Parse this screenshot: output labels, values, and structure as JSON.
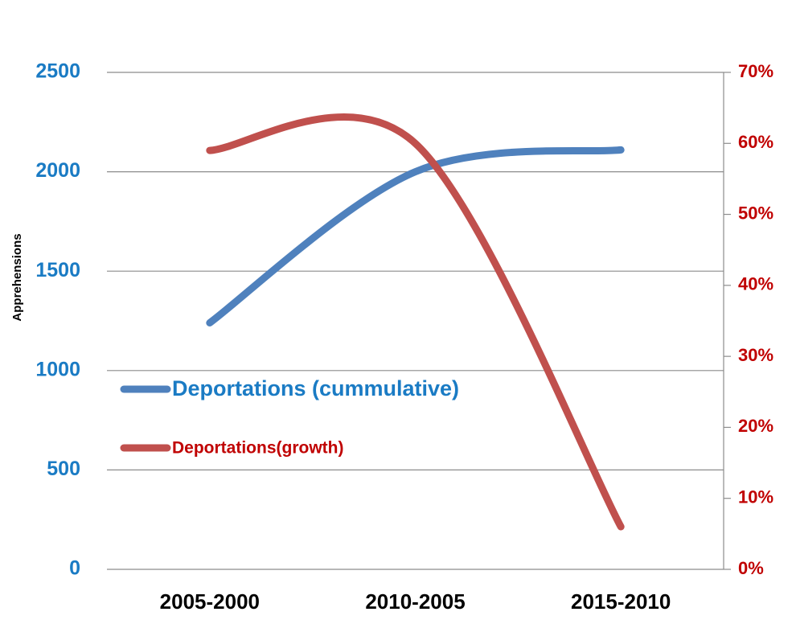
{
  "chart_data": {
    "type": "line",
    "smooth": true,
    "categories": [
      "2005-2000",
      "2010-2005",
      "2015-2010"
    ],
    "y_label": "Apprehensions",
    "ylim": [
      0,
      2500
    ],
    "yticks": [
      0,
      500,
      1000,
      1500,
      2000,
      2500
    ],
    "y2lim": [
      0,
      70
    ],
    "y2ticks": [
      {
        "value": 0,
        "label": "0%"
      },
      {
        "value": 10,
        "label": "10%"
      },
      {
        "value": 20,
        "label": "20%"
      },
      {
        "value": 30,
        "label": "30%"
      },
      {
        "value": 40,
        "label": "40%"
      },
      {
        "value": 50,
        "label": "50%"
      },
      {
        "value": 60,
        "label": "60%"
      },
      {
        "value": 70,
        "label": "70%"
      }
    ],
    "grid": true,
    "ytick_color": "#1a7bc4",
    "y2tick_color": "#c00000",
    "series": [
      {
        "name": "Deportations (cummulative)",
        "color": "#4f81bd",
        "label_color": "#1a7bc4",
        "values": [
          1240,
          2000,
          2110
        ]
      },
      {
        "name": "Deportations(growth)",
        "color": "#c0504d",
        "label_color": "#c00000",
        "axis": "y2",
        "values": [
          59,
          60,
          6
        ]
      }
    ]
  }
}
